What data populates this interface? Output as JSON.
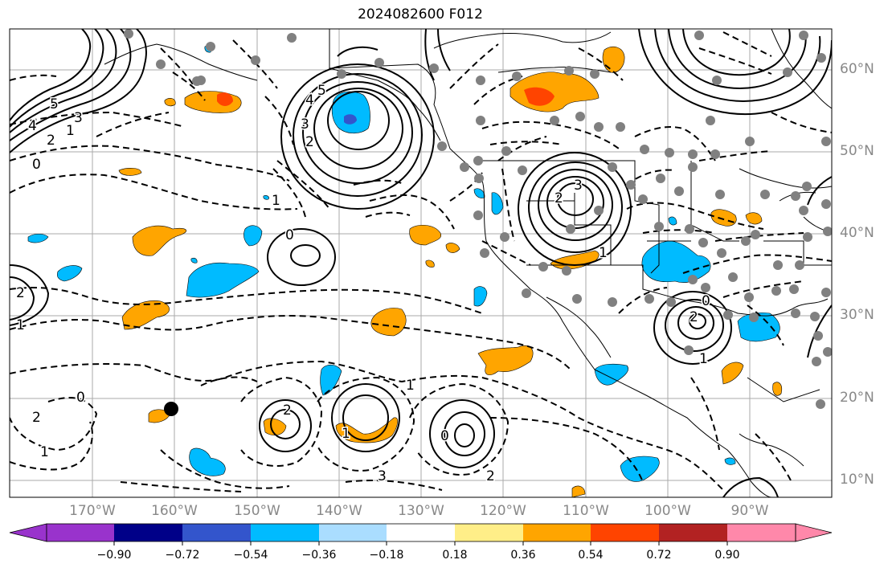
{
  "title": "2024082600 F012",
  "lat_labels": [
    "60°N",
    "50°N",
    "40°N",
    "30°N",
    "20°N",
    "10°N"
  ],
  "lon_labels": [
    "170°W",
    "160°W",
    "150°W",
    "140°W",
    "130°W",
    "120°W",
    "110°W",
    "100°W",
    "90°W"
  ],
  "colorbar": {
    "labels": [
      "−0.90",
      "−0.72",
      "−0.54",
      "−0.36",
      "−0.18",
      "0.18",
      "0.36",
      "0.54",
      "0.72",
      "0.90"
    ],
    "colors": [
      "#9933cc",
      "#000088",
      "#3355cc",
      "#00bbff",
      "#aaddff",
      "#ffffff",
      "#ffee88",
      "#ffa500",
      "#ff4400",
      "#b22222",
      "#ff88aa"
    ]
  },
  "contour_labels": [
    "5",
    "4",
    "3",
    "2",
    "1",
    "0",
    "5",
    "4",
    "3",
    "2",
    "1",
    "0",
    "3",
    "2",
    "1",
    "2",
    "1",
    "0",
    "2",
    "1",
    "0",
    "1",
    "2",
    "3",
    "2",
    "1",
    "2",
    "1",
    "0"
  ],
  "shading_colors": {
    "positive": "#ffa500",
    "strong_positive": "#ff4400",
    "negative": "#00bbff",
    "strong_negative": "#3355cc"
  }
}
